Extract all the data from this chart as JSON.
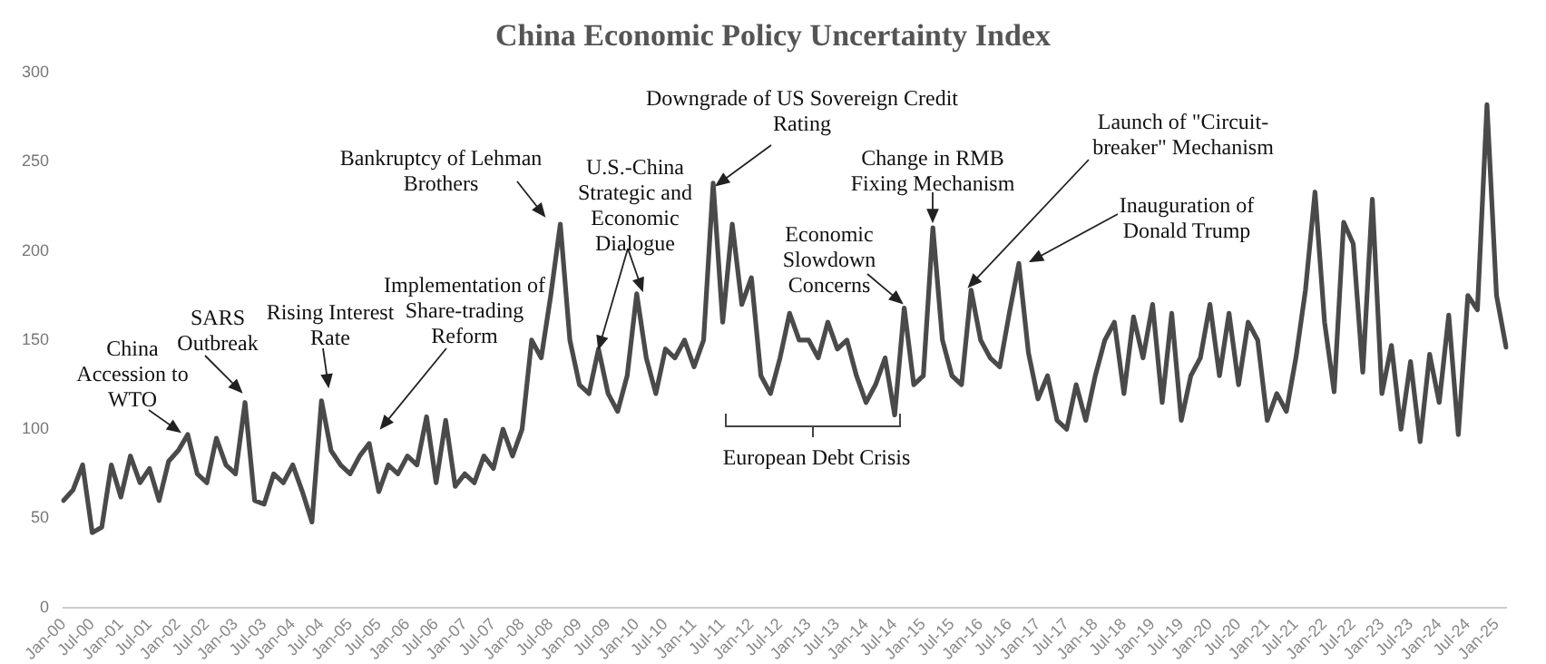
{
  "chart_data": {
    "type": "line",
    "title": "China Economic Policy Uncertainty Index",
    "categories": [
      "Jan-00",
      null,
      null,
      "Jul-00",
      null,
      null,
      "Jan-01",
      null,
      null,
      "Jul-01",
      null,
      null,
      "Jan-02",
      null,
      null,
      "Jul-02",
      null,
      null,
      "Jan-03",
      null,
      null,
      "Jul-03",
      null,
      null,
      "Jan-04",
      null,
      null,
      "Jul-04",
      null,
      null,
      "Jan-05",
      null,
      null,
      "Jul-05",
      null,
      null,
      "Jan-06",
      null,
      null,
      "Jul-06",
      null,
      null,
      "Jan-07",
      null,
      null,
      "Jul-07",
      null,
      null,
      "Jan-08",
      null,
      null,
      "Jul-08",
      null,
      null,
      "Jan-09",
      null,
      null,
      "Jul-09",
      null,
      null,
      "Jan-10",
      null,
      null,
      "Jul-10",
      null,
      null,
      "Jan-11",
      null,
      null,
      "Jul-11",
      null,
      null,
      "Jan-12",
      null,
      null,
      "Jul-12",
      null,
      null,
      "Jan-13",
      null,
      null,
      "Jul-13",
      null,
      null,
      "Jan-14",
      null,
      null,
      "Jul-14",
      null,
      null,
      "Jan-15",
      null,
      null,
      "Jul-15",
      null,
      null,
      "Jan-16",
      null,
      null,
      "Jul-16",
      null,
      null,
      "Jan-17",
      null,
      null,
      "Jul-17",
      null,
      null,
      "Jan-18",
      null,
      null,
      "Jul-18",
      null,
      null,
      "Jan-19",
      null,
      null,
      "Jul-19",
      null,
      null,
      "Jan-20",
      null,
      null,
      "Jul-20",
      null,
      null,
      "Jan-21",
      null,
      null,
      "Jul-21",
      null,
      null,
      "Jan-22",
      null,
      null,
      "Jul-22",
      null,
      null,
      "Jan-23",
      null,
      null,
      "Jul-23",
      null,
      null,
      "Jan-24",
      null,
      null,
      "Jul-24",
      null,
      null,
      "Jan-25",
      null
    ],
    "series": [
      {
        "color": "#4a4a4a",
        "values": [
          60,
          66,
          80,
          42,
          45,
          80,
          62,
          85,
          70,
          78,
          60,
          82,
          88,
          97,
          75,
          70,
          95,
          80,
          75,
          115,
          60,
          58,
          75,
          70,
          80,
          65,
          48,
          116,
          88,
          80,
          75,
          85,
          92,
          65,
          80,
          75,
          85,
          80,
          107,
          70,
          105,
          68,
          75,
          70,
          85,
          78,
          100,
          85,
          100,
          150,
          140,
          175,
          215,
          150,
          125,
          120,
          145,
          120,
          110,
          130,
          176,
          140,
          120,
          145,
          140,
          150,
          135,
          150,
          238,
          160,
          215,
          170,
          185,
          130,
          120,
          140,
          165,
          150,
          150,
          140,
          160,
          145,
          150,
          130,
          115,
          125,
          140,
          108,
          168,
          125,
          130,
          213,
          150,
          130,
          125,
          178,
          150,
          140,
          135,
          165,
          193,
          143,
          117,
          130,
          105,
          100,
          125,
          105,
          130,
          150,
          160,
          120,
          163,
          140,
          170,
          115,
          165,
          105,
          130,
          140,
          170,
          130,
          165,
          125,
          160,
          150,
          105,
          120,
          110,
          140,
          178,
          233,
          160,
          121,
          216,
          204,
          132,
          229,
          120,
          147,
          100,
          138,
          93,
          142,
          115,
          164,
          97,
          175,
          167,
          282,
          175,
          146
        ]
      }
    ],
    "ylim": [
      0,
      300
    ],
    "yticks": [
      0,
      50,
      100,
      150,
      200,
      250,
      300
    ],
    "grid": false,
    "legend": false,
    "marker": "none",
    "line_style": "solid",
    "annotations": [
      "China Accession to WTO",
      "SARS Outbreak",
      "Rising Interest Rate",
      "Implementation of Share-trading Reform",
      "Bankruptcy of Lehman Brothers",
      "U.S.-China Strategic and Economic Dialogue",
      "Downgrade of US Sovereign Credit Rating",
      "Economic Slowdown Concerns",
      "Change in RMB Fixing Mechanism",
      "Launch of \"Circuit-breaker\" Mechanism",
      "Inauguration of Donald Trump",
      "European Debt Crisis"
    ]
  }
}
